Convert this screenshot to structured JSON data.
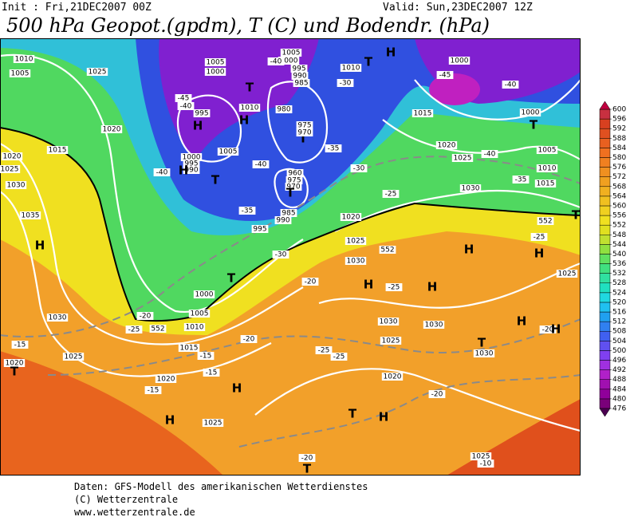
{
  "header": {
    "init": "Init : Fri,21DEC2007 00Z",
    "valid": "Valid: Sun,23DEC2007 12Z",
    "title": "500 hPa Geopot.(gpdm), T (C) und Bodendr. (hPa)"
  },
  "map_labels": [
    "1010",
    "1005",
    "1025",
    "1020",
    "1015",
    "1020",
    "1025",
    "1030",
    "1035",
    "H",
    "1030",
    "1025",
    "1020",
    "T",
    "-15",
    "-20",
    "-25",
    "1005",
    "1010",
    "1015",
    "1020",
    "-15",
    "1025",
    "H",
    "H",
    "1000",
    "T",
    "995",
    "985",
    "990",
    "-35",
    "980",
    "975",
    "T",
    "970",
    "-35",
    "1005",
    "1000",
    "1005",
    "1000",
    "995",
    "990",
    "985",
    "-40",
    "-30",
    "1010",
    "T",
    "H",
    "1000",
    "-45",
    "-40",
    "1000",
    "T",
    "1005",
    "1010",
    "1015",
    "-35",
    "-40",
    "1020",
    "1025",
    "1015",
    "1030",
    "552",
    "T",
    "-25",
    "H",
    "H",
    "1025",
    "H",
    "-25",
    "H",
    "1030",
    "1025",
    "1020",
    "552",
    "-25",
    "-30",
    "1030",
    "1030",
    "H",
    "-20",
    "H",
    "1025",
    "T",
    "1030",
    "-25",
    "-25",
    "1020",
    "-20",
    "T",
    "H",
    "1025",
    "-10",
    "T",
    "-20",
    "552",
    "-20",
    "-20",
    "-15",
    "-15",
    "-40",
    "1000",
    "995",
    "990",
    "T",
    "H",
    "-45",
    "-40",
    "995",
    "H",
    "T",
    "H",
    "1010",
    "1005",
    "-40",
    "960",
    "975",
    "970",
    "T",
    "-30"
  ],
  "colorbar": {
    "ticks": [
      476,
      480,
      484,
      488,
      492,
      496,
      500,
      504,
      508,
      512,
      516,
      520,
      524,
      528,
      532,
      536,
      540,
      544,
      548,
      552,
      556,
      560,
      564,
      568,
      572,
      576,
      580,
      584,
      588,
      592,
      596,
      600
    ],
    "colors": [
      "#7a007a",
      "#90009a",
      "#a010b0",
      "#b020c8",
      "#a030e0",
      "#8040f0",
      "#6050f0",
      "#4060f0",
      "#3080f0",
      "#20a0f0",
      "#20c0f0",
      "#20d8e0",
      "#20e0c0",
      "#30e0a0",
      "#40e080",
      "#60e060",
      "#90e040",
      "#c0e030",
      "#e0e020",
      "#f0e020",
      "#f0d020",
      "#f0c020",
      "#f0b020",
      "#f0a020",
      "#f09020",
      "#f08020",
      "#f07020",
      "#e86020",
      "#e05020",
      "#d84020",
      "#c83040"
    ],
    "below_color": "#4a0050",
    "above_color": "#c00040"
  },
  "footer": [
    "Daten: GFS-Modell des amerikanischen Wetterdienstes",
    "(C) Wetterzentrale",
    "www.wetterzentrale.de"
  ]
}
